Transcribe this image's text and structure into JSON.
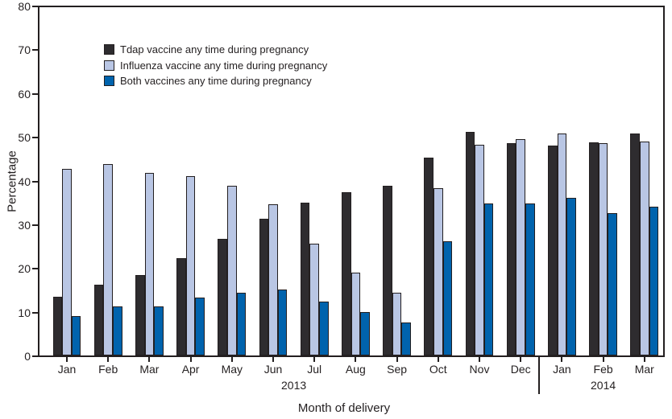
{
  "chart_data": {
    "type": "bar",
    "title": "",
    "xlabel": "Month of delivery",
    "ylabel": "Percentage",
    "ylim": [
      0,
      80
    ],
    "ytick_labels": [
      "0",
      "10",
      "20",
      "30",
      "40",
      "50",
      "60",
      "70",
      "80"
    ],
    "grid": false,
    "legend_position": "top-left-inside",
    "categories": [
      "Jan",
      "Feb",
      "Mar",
      "Apr",
      "May",
      "Jun",
      "Jul",
      "Aug",
      "Sep",
      "Oct",
      "Nov",
      "Dec",
      "Jan",
      "Feb",
      "Mar"
    ],
    "year_groups": [
      {
        "label": "2013",
        "start": 0,
        "end": 11
      },
      {
        "label": "2014",
        "start": 12,
        "end": 14
      }
    ],
    "series": [
      {
        "name": "Tdap vaccine any time during pregnancy",
        "color": "#2e2c2f",
        "values": [
          13.5,
          16.2,
          18.4,
          22.2,
          26.6,
          31.2,
          35.0,
          37.3,
          38.8,
          45.2,
          51.2,
          48.6,
          48.0,
          48.8,
          50.8
        ]
      },
      {
        "name": "Influenza vaccine any time during pregnancy",
        "color": "#b9c6e4",
        "values": [
          42.6,
          43.8,
          41.8,
          41.0,
          38.8,
          34.6,
          25.5,
          19.0,
          14.4,
          38.3,
          48.2,
          49.4,
          50.8,
          48.5,
          48.9
        ]
      },
      {
        "name": "Both vaccines any time during pregnancy",
        "color": "#0063ad",
        "values": [
          9.0,
          11.3,
          11.3,
          13.2,
          14.3,
          15.1,
          12.3,
          10.0,
          7.5,
          26.2,
          34.8,
          34.8,
          36.0,
          32.6,
          34.1
        ]
      }
    ],
    "ink_color": "#231f20",
    "background_color": "#ffffff"
  }
}
